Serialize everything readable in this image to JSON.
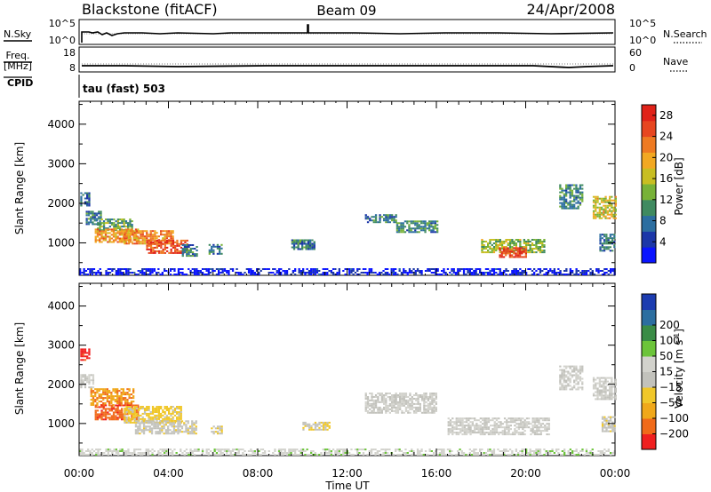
{
  "header": {
    "station": "Blackstone (fitACF)",
    "beam": "Beam 09",
    "date": "24/Apr/2008"
  },
  "sky_panel": {
    "left_label": "N.Sky",
    "left_top": "10^5",
    "left_bottom": "10^0",
    "right_top": "10^5",
    "right_bottom": "10^0",
    "right_label": "N.Search"
  },
  "freq_panel": {
    "left_label_1": "Freq.",
    "left_label_2": "[MHz]",
    "left_top": "18",
    "left_bottom": "8",
    "right_top": "60",
    "right_bottom": "0",
    "right_label": "Nave"
  },
  "cpid_panel": {
    "label": "CPID",
    "text": "tau (fast) 503"
  },
  "colors": {
    "power": [
      "#0a14ff",
      "#1c37a8",
      "#2c6ea0",
      "#3f8a60",
      "#78b238",
      "#c8be22",
      "#f2a822",
      "#ee7a22",
      "#e74620",
      "#e02219"
    ],
    "velocity": [
      "#f02020",
      "#f06a1a",
      "#f0a81a",
      "#f0c72a",
      "#c2c2bc",
      "#d2d2cc",
      "#6cc43a",
      "#3a8c46",
      "#2c6ea0",
      "#1c3cb0"
    ]
  },
  "chart_data": [
    {
      "type": "heatmap",
      "title": "",
      "ylabel": "Slant Range [km]",
      "xlabel": "",
      "x_ticks": [
        "00:00",
        "04:00",
        "08:00",
        "12:00",
        "16:00",
        "20:00",
        "00:00"
      ],
      "xlim_hours": [
        0,
        24
      ],
      "y_ticks": [
        "1000",
        "2000",
        "3000",
        "4000"
      ],
      "ylim": [
        180,
        4580
      ],
      "colorbar": {
        "label": "Power [dB]",
        "ticks": [
          "4",
          "8",
          "12",
          "16",
          "20",
          "24",
          "28"
        ],
        "range": [
          0,
          30
        ]
      },
      "regions": [
        {
          "t0": 0.0,
          "t1": 24.0,
          "r0": 180,
          "r1": 330,
          "level": 0.07
        },
        {
          "t0": 0.05,
          "t1": 0.5,
          "r0": 1920,
          "r1": 2260,
          "level": 0.25
        },
        {
          "t0": 0.3,
          "t1": 1.0,
          "r0": 1450,
          "r1": 1800,
          "level": 0.3
        },
        {
          "t0": 0.8,
          "t1": 2.4,
          "r0": 1300,
          "r1": 1600,
          "level": 0.4
        },
        {
          "t0": 0.7,
          "t1": 2.6,
          "r0": 1000,
          "r1": 1320,
          "level": 0.68
        },
        {
          "t0": 2.0,
          "t1": 4.2,
          "r0": 960,
          "r1": 1320,
          "level": 0.72
        },
        {
          "t0": 3.0,
          "t1": 4.8,
          "r0": 720,
          "r1": 1080,
          "level": 0.85
        },
        {
          "t0": 4.6,
          "t1": 5.3,
          "r0": 650,
          "r1": 950,
          "level": 0.3
        },
        {
          "t0": 5.8,
          "t1": 6.4,
          "r0": 700,
          "r1": 950,
          "level": 0.3
        },
        {
          "t0": 9.5,
          "t1": 10.5,
          "r0": 820,
          "r1": 1060,
          "level": 0.28
        },
        {
          "t0": 12.8,
          "t1": 14.2,
          "r0": 1500,
          "r1": 1720,
          "level": 0.28
        },
        {
          "t0": 14.2,
          "t1": 16.0,
          "r0": 1250,
          "r1": 1560,
          "level": 0.32
        },
        {
          "t0": 18.0,
          "t1": 20.8,
          "r0": 740,
          "r1": 1100,
          "level": 0.48
        },
        {
          "t0": 18.8,
          "t1": 20.0,
          "r0": 620,
          "r1": 880,
          "level": 0.88
        },
        {
          "t0": 21.5,
          "t1": 22.5,
          "r0": 1850,
          "r1": 2450,
          "level": 0.32
        },
        {
          "t0": 23.0,
          "t1": 24.0,
          "r0": 1600,
          "r1": 2150,
          "level": 0.58
        },
        {
          "t0": 23.3,
          "t1": 24.0,
          "r0": 780,
          "r1": 1200,
          "level": 0.28
        }
      ]
    },
    {
      "type": "heatmap",
      "title": "",
      "ylabel": "Slant Range [km]",
      "xlabel": "Time UT",
      "x_ticks": [
        "00:00",
        "04:00",
        "08:00",
        "12:00",
        "16:00",
        "20:00",
        "00:00"
      ],
      "xlim_hours": [
        0,
        24
      ],
      "y_ticks": [
        "1000",
        "2000",
        "3000",
        "4000"
      ],
      "ylim": [
        180,
        4580
      ],
      "colorbar": {
        "label": "Velocity [m s^-1]",
        "ticks": [
          "-200",
          "-100",
          "-50",
          "-15",
          "15",
          "50",
          "100",
          "200"
        ],
        "range": [
          -250,
          250
        ]
      },
      "regions": [
        {
          "t0": 0.0,
          "t1": 24.0,
          "r0": 180,
          "r1": 330,
          "velocity": 30
        },
        {
          "t0": 0.05,
          "t1": 0.5,
          "r0": 2600,
          "r1": 2900,
          "velocity": -220
        },
        {
          "t0": 0.05,
          "t1": 0.6,
          "r0": 1900,
          "r1": 2250,
          "velocity": 5
        },
        {
          "t0": 0.5,
          "t1": 2.4,
          "r0": 1450,
          "r1": 1900,
          "velocity": -140
        },
        {
          "t0": 0.7,
          "t1": 2.6,
          "r0": 1080,
          "r1": 1450,
          "velocity": -180
        },
        {
          "t0": 2.0,
          "t1": 4.6,
          "r0": 1000,
          "r1": 1420,
          "velocity": -70
        },
        {
          "t0": 2.5,
          "t1": 5.2,
          "r0": 720,
          "r1": 1050,
          "velocity": -30
        },
        {
          "t0": 5.9,
          "t1": 6.4,
          "r0": 720,
          "r1": 930,
          "velocity": -40
        },
        {
          "t0": 10.0,
          "t1": 11.2,
          "r0": 820,
          "r1": 1040,
          "velocity": -40
        },
        {
          "t0": 12.8,
          "t1": 16.0,
          "r0": 1250,
          "r1": 1750,
          "velocity": 5
        },
        {
          "t0": 16.5,
          "t1": 21.0,
          "r0": 700,
          "r1": 1150,
          "velocity": 5
        },
        {
          "t0": 21.5,
          "t1": 22.5,
          "r0": 1850,
          "r1": 2450,
          "velocity": 5
        },
        {
          "t0": 23.0,
          "t1": 24.0,
          "r0": 1600,
          "r1": 2150,
          "velocity": 5
        },
        {
          "t0": 23.4,
          "t1": 24.0,
          "r0": 780,
          "r1": 1150,
          "velocity": -30
        }
      ]
    }
  ]
}
